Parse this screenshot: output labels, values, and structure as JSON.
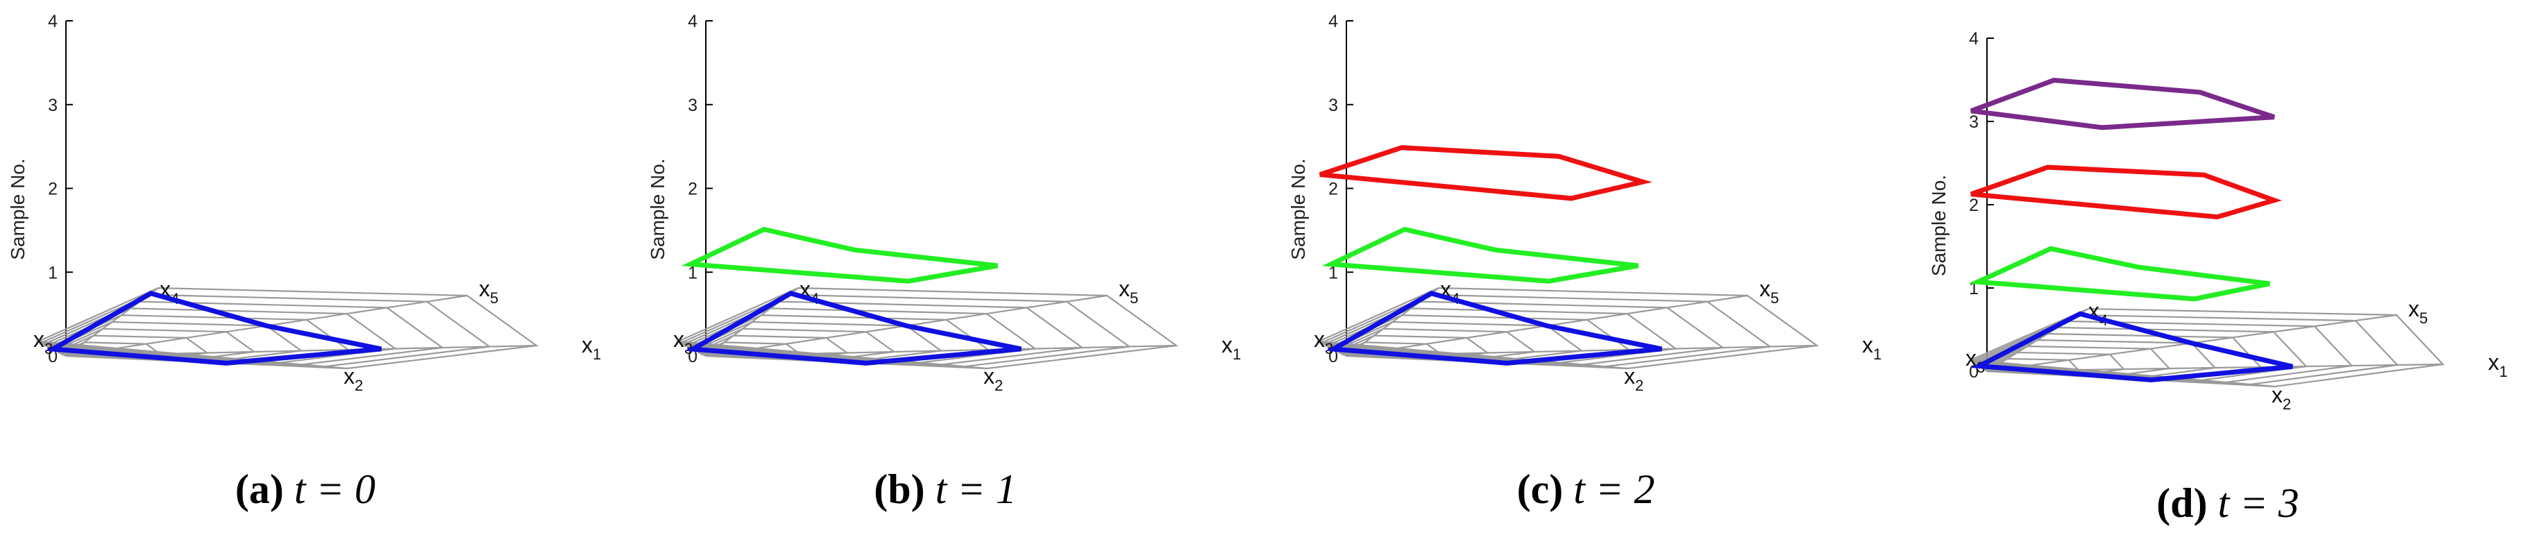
{
  "figure": "Radar-star glyphs stacked along sample index for t = 0..3",
  "chart_data": [
    {
      "type": "line",
      "panel": "a",
      "caption": {
        "label": "(a)",
        "text": "t = 0"
      },
      "ylabel": "Sample No.",
      "ylim": [
        0,
        4
      ],
      "yticks": [
        "0",
        "1",
        "2",
        "3",
        "4"
      ],
      "axes": [
        {
          "name": "x",
          "sub": "1"
        },
        {
          "name": "x",
          "sub": "2"
        },
        {
          "name": "x",
          "sub": "3"
        },
        {
          "name": "x",
          "sub": "4"
        },
        {
          "name": "x",
          "sub": "5"
        }
      ],
      "series": [
        {
          "name": "sample 0",
          "color": "#1010e0",
          "z": 0,
          "values": [
            0.67,
            0.57,
            0.47,
            0.92,
            0.5
          ]
        }
      ]
    },
    {
      "type": "line",
      "panel": "b",
      "caption": {
        "label": "(b)",
        "text": "t = 1"
      },
      "ylabel": "Sample No.",
      "ylim": [
        0,
        4
      ],
      "yticks": [
        "0",
        "1",
        "2",
        "3",
        "4"
      ],
      "axes": [
        {
          "name": "x",
          "sub": "1"
        },
        {
          "name": "x",
          "sub": "2"
        },
        {
          "name": "x",
          "sub": "3"
        },
        {
          "name": "x",
          "sub": "4"
        },
        {
          "name": "x",
          "sub": "5"
        }
      ],
      "series": [
        {
          "name": "sample 0",
          "color": "#1010e0",
          "z": 0,
          "values": [
            0.67,
            0.57,
            0.47,
            0.92,
            0.5
          ]
        },
        {
          "name": "sample 1",
          "color": "#22ee22",
          "z": 1,
          "values": [
            0.62,
            0.72,
            0.55,
            0.63,
            0.37
          ]
        }
      ]
    },
    {
      "type": "line",
      "panel": "c",
      "caption": {
        "label": "(c)",
        "text": "t = 2"
      },
      "ylabel": "Sample No.",
      "ylim": [
        0,
        4
      ],
      "yticks": [
        "0",
        "1",
        "2",
        "3",
        "4"
      ],
      "axes": [
        {
          "name": "x",
          "sub": "1"
        },
        {
          "name": "x",
          "sub": "2"
        },
        {
          "name": "x",
          "sub": "3"
        },
        {
          "name": "x",
          "sub": "4"
        },
        {
          "name": "x",
          "sub": "5"
        }
      ],
      "series": [
        {
          "name": "sample 0",
          "color": "#1010e0",
          "z": 0,
          "values": [
            0.67,
            0.57,
            0.47,
            0.92,
            0.5
          ]
        },
        {
          "name": "sample 1",
          "color": "#22ee22",
          "z": 1,
          "values": [
            0.62,
            0.72,
            0.55,
            0.63,
            0.37
          ]
        },
        {
          "name": "sample 2",
          "color": "#ee1111",
          "z": 2,
          "values": [
            0.63,
            0.8,
            0.95,
            0.6,
            0.53
          ]
        }
      ]
    },
    {
      "type": "line",
      "panel": "d",
      "caption": {
        "label": "(d)",
        "text": "t = 3"
      },
      "ylabel": "Sample No.",
      "ylim": [
        0,
        4
      ],
      "yticks": [
        "0",
        "1",
        "2",
        "3",
        "4"
      ],
      "axes": [
        {
          "name": "x",
          "sub": "1"
        },
        {
          "name": "x",
          "sub": "2"
        },
        {
          "name": "x",
          "sub": "3"
        },
        {
          "name": "x",
          "sub": "4"
        },
        {
          "name": "x",
          "sub": "5"
        }
      ],
      "series": [
        {
          "name": "sample 0",
          "color": "#1010e0",
          "z": 0,
          "values": [
            0.67,
            0.57,
            0.47,
            0.92,
            0.5
          ]
        },
        {
          "name": "sample 1",
          "color": "#22ee22",
          "z": 1,
          "values": [
            0.62,
            0.72,
            0.55,
            0.63,
            0.37
          ]
        },
        {
          "name": "sample 2",
          "color": "#ee1111",
          "z": 2,
          "values": [
            0.63,
            0.8,
            0.95,
            0.6,
            0.53
          ]
        },
        {
          "name": "sample 3",
          "color": "#7a2a8a",
          "z": 3,
          "values": [
            0.63,
            0.4,
            0.95,
            0.66,
            0.52
          ]
        }
      ]
    }
  ]
}
